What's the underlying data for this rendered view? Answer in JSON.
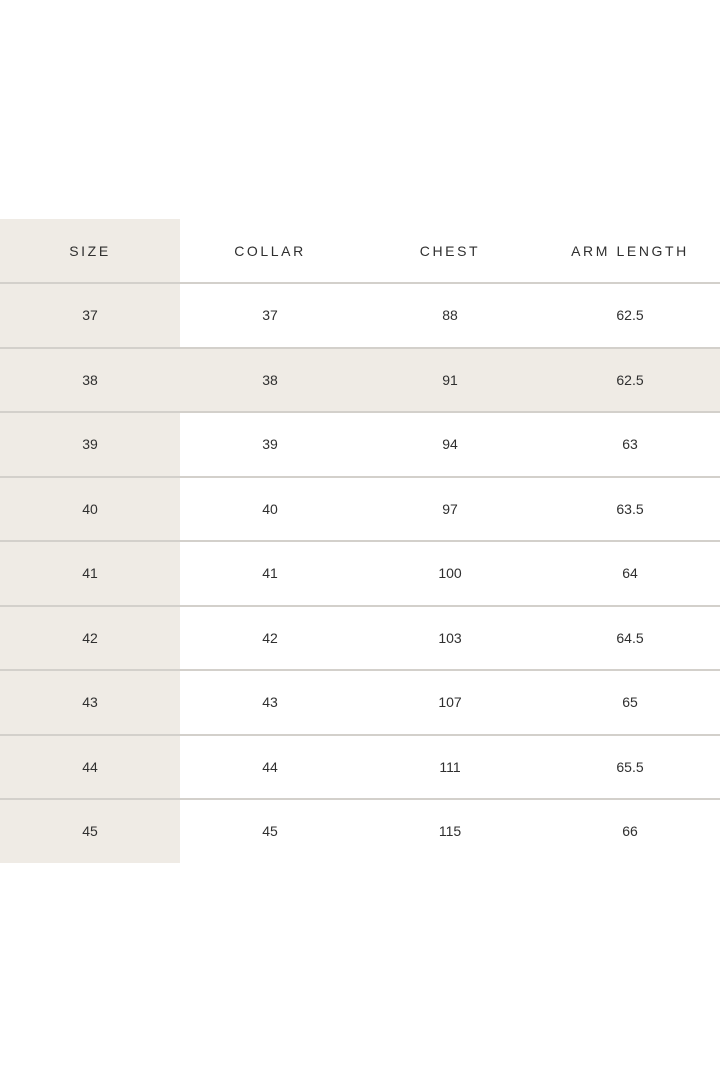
{
  "table": {
    "headers": [
      "SIZE",
      "COLLAR",
      "CHEST",
      "ARM LENGTH"
    ],
    "rows": [
      [
        "37",
        "37",
        "88",
        "62.5"
      ],
      [
        "38",
        "38",
        "91",
        "62.5"
      ],
      [
        "39",
        "39",
        "94",
        "63"
      ],
      [
        "40",
        "40",
        "97",
        "63.5"
      ],
      [
        "41",
        "41",
        "100",
        "64"
      ],
      [
        "42",
        "42",
        "103",
        "64.5"
      ],
      [
        "43",
        "43",
        "107",
        "65"
      ],
      [
        "44",
        "44",
        "111",
        "65.5"
      ],
      [
        "45",
        "45",
        "115",
        "66"
      ]
    ],
    "highlighted_row_size": "38",
    "colors": {
      "shade": "#efebe5",
      "divider": "#d3d0cb",
      "text": "#2f2f2f"
    }
  }
}
